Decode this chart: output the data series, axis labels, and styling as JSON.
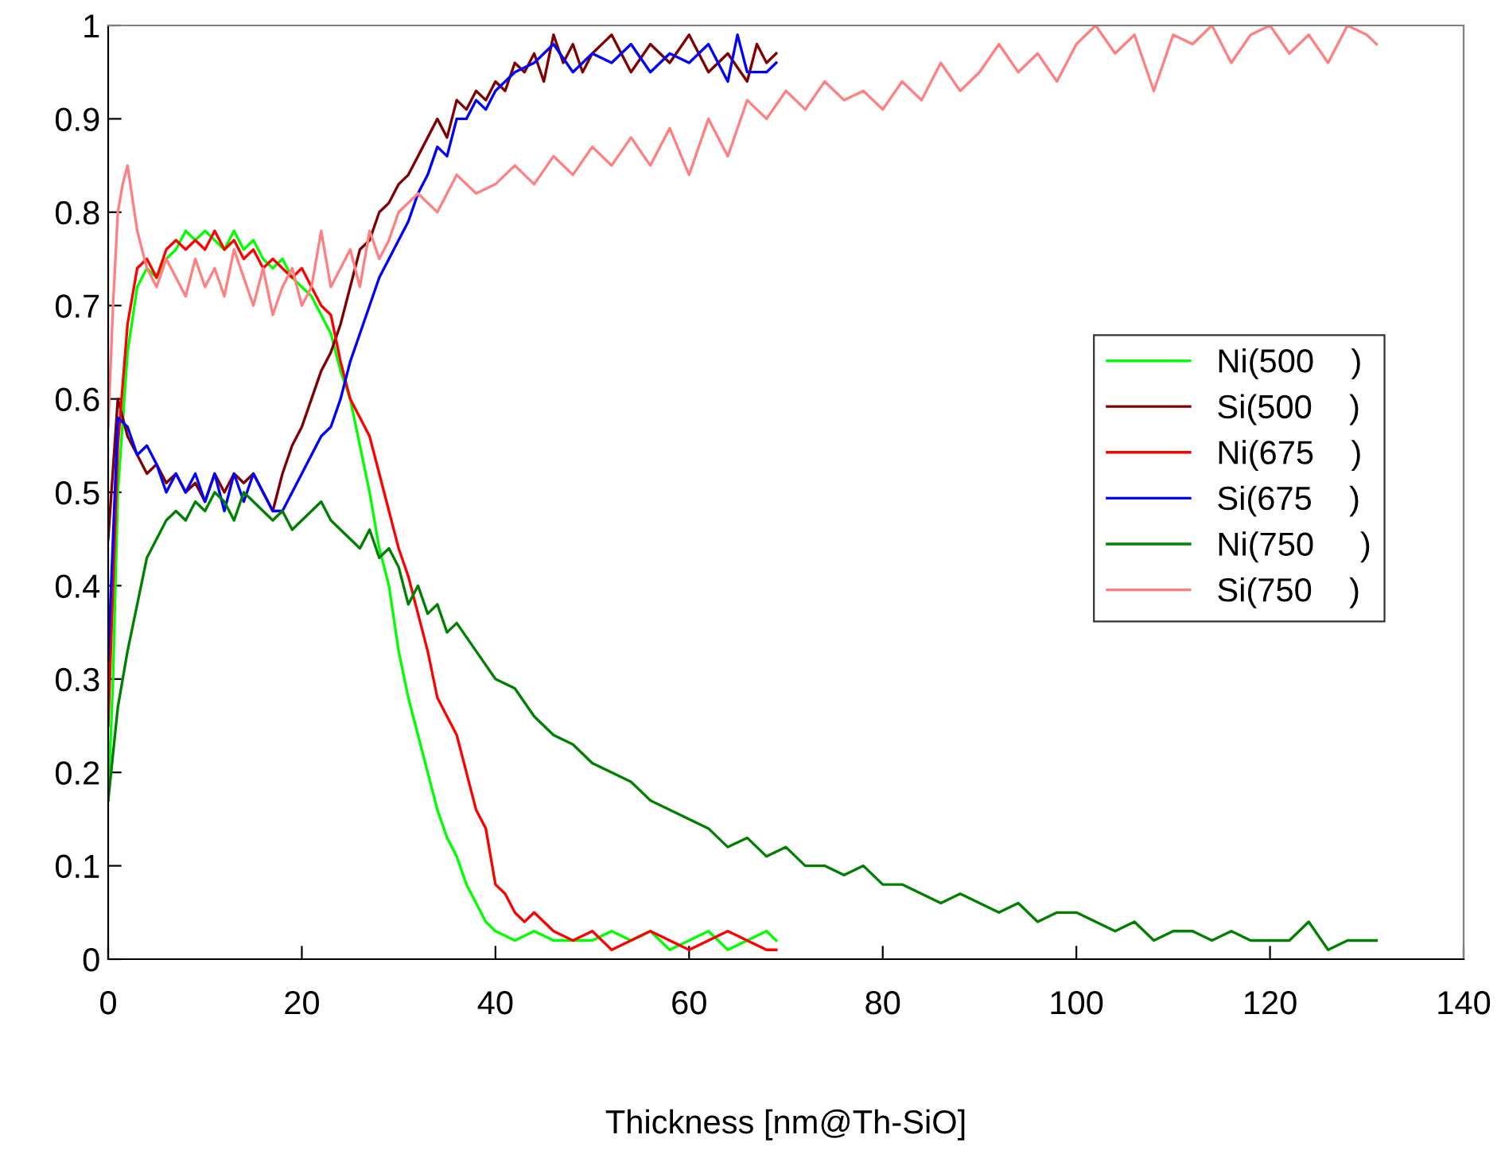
{
  "chart_data": {
    "type": "line",
    "xlabel": "Thickness [nm@Th-SiO]",
    "xlim": [
      0,
      140
    ],
    "xticks": [
      0,
      20,
      40,
      60,
      80,
      100,
      120,
      140
    ],
    "ylim": [
      0,
      1
    ],
    "yticks": [
      0,
      0.1,
      0.2,
      0.3,
      0.4,
      0.5,
      0.6,
      0.7,
      0.8,
      0.9,
      1
    ],
    "grid": false,
    "legend": "right",
    "marker": "none",
    "line_style": "solid",
    "series": [
      {
        "name": "Ni(500    )",
        "color": "#00ff00",
        "x": [
          0,
          0.5,
          1,
          2,
          3,
          4,
          5,
          6,
          7,
          8,
          9,
          10,
          11,
          12,
          13,
          14,
          15,
          16,
          17,
          18,
          19,
          20,
          21,
          22,
          23,
          24,
          25,
          26,
          27,
          28,
          29,
          30,
          31,
          32,
          33,
          34,
          35,
          36,
          37,
          38,
          39,
          40,
          42,
          44,
          46,
          48,
          50,
          52,
          54,
          56,
          58,
          60,
          62,
          64,
          66,
          68,
          69
        ],
        "values": [
          0.17,
          0.3,
          0.5,
          0.65,
          0.72,
          0.74,
          0.73,
          0.75,
          0.76,
          0.78,
          0.77,
          0.78,
          0.77,
          0.76,
          0.78,
          0.76,
          0.77,
          0.75,
          0.74,
          0.75,
          0.73,
          0.72,
          0.71,
          0.69,
          0.67,
          0.63,
          0.6,
          0.55,
          0.5,
          0.44,
          0.4,
          0.33,
          0.28,
          0.24,
          0.2,
          0.16,
          0.13,
          0.11,
          0.08,
          0.06,
          0.04,
          0.03,
          0.02,
          0.03,
          0.02,
          0.02,
          0.02,
          0.03,
          0.02,
          0.03,
          0.01,
          0.02,
          0.03,
          0.01,
          0.02,
          0.03,
          0.02
        ]
      },
      {
        "name": "Si(500    )",
        "color": "#800000",
        "x": [
          0,
          1,
          2,
          3,
          4,
          5,
          6,
          7,
          8,
          9,
          10,
          11,
          12,
          13,
          14,
          15,
          16,
          17,
          18,
          19,
          20,
          21,
          22,
          23,
          24,
          25,
          26,
          27,
          28,
          29,
          30,
          31,
          32,
          33,
          34,
          35,
          36,
          37,
          38,
          39,
          40,
          41,
          42,
          43,
          44,
          45,
          46,
          47,
          48,
          49,
          50,
          52,
          54,
          56,
          58,
          60,
          62,
          64,
          66,
          67,
          68,
          69
        ],
        "values": [
          0.45,
          0.6,
          0.56,
          0.54,
          0.52,
          0.53,
          0.51,
          0.52,
          0.5,
          0.51,
          0.49,
          0.52,
          0.5,
          0.52,
          0.51,
          0.52,
          0.5,
          0.48,
          0.52,
          0.55,
          0.57,
          0.6,
          0.63,
          0.65,
          0.68,
          0.72,
          0.76,
          0.77,
          0.8,
          0.81,
          0.83,
          0.84,
          0.86,
          0.88,
          0.9,
          0.88,
          0.92,
          0.91,
          0.93,
          0.92,
          0.94,
          0.93,
          0.96,
          0.95,
          0.97,
          0.94,
          0.99,
          0.96,
          0.98,
          0.95,
          0.97,
          0.99,
          0.95,
          0.98,
          0.96,
          0.99,
          0.95,
          0.97,
          0.94,
          0.98,
          0.96,
          0.97
        ]
      },
      {
        "name": "Ni(675    )",
        "color": "#ff0000",
        "x": [
          0,
          0.5,
          1,
          2,
          3,
          4,
          5,
          6,
          7,
          8,
          9,
          10,
          11,
          12,
          13,
          14,
          15,
          16,
          17,
          18,
          19,
          20,
          21,
          22,
          23,
          24,
          25,
          26,
          27,
          28,
          29,
          30,
          31,
          32,
          33,
          34,
          35,
          36,
          37,
          38,
          39,
          40,
          41,
          42,
          43,
          44,
          46,
          48,
          50,
          52,
          54,
          56,
          58,
          60,
          62,
          64,
          66,
          68,
          69
        ],
        "values": [
          0.25,
          0.4,
          0.55,
          0.68,
          0.74,
          0.75,
          0.73,
          0.76,
          0.77,
          0.76,
          0.77,
          0.76,
          0.78,
          0.76,
          0.77,
          0.75,
          0.76,
          0.74,
          0.75,
          0.74,
          0.73,
          0.74,
          0.72,
          0.7,
          0.69,
          0.64,
          0.6,
          0.58,
          0.56,
          0.52,
          0.48,
          0.44,
          0.41,
          0.37,
          0.33,
          0.28,
          0.26,
          0.24,
          0.2,
          0.16,
          0.14,
          0.08,
          0.07,
          0.05,
          0.04,
          0.05,
          0.03,
          0.02,
          0.03,
          0.01,
          0.02,
          0.03,
          0.02,
          0.01,
          0.02,
          0.03,
          0.02,
          0.01,
          0.01
        ]
      },
      {
        "name": "Si(675    )",
        "color": "#0000ff",
        "x": [
          0,
          0.5,
          1,
          2,
          3,
          4,
          5,
          6,
          7,
          8,
          9,
          10,
          11,
          12,
          13,
          14,
          15,
          16,
          17,
          18,
          19,
          20,
          21,
          22,
          23,
          24,
          25,
          26,
          27,
          28,
          29,
          30,
          31,
          32,
          33,
          34,
          35,
          36,
          37,
          38,
          39,
          40,
          42,
          44,
          46,
          48,
          50,
          52,
          54,
          56,
          58,
          60,
          62,
          64,
          65,
          66,
          68,
          69
        ],
        "values": [
          0.32,
          0.45,
          0.58,
          0.57,
          0.54,
          0.55,
          0.53,
          0.5,
          0.52,
          0.5,
          0.52,
          0.49,
          0.52,
          0.48,
          0.52,
          0.49,
          0.52,
          0.5,
          0.48,
          0.48,
          0.5,
          0.52,
          0.54,
          0.56,
          0.57,
          0.6,
          0.64,
          0.67,
          0.7,
          0.73,
          0.75,
          0.77,
          0.79,
          0.82,
          0.84,
          0.87,
          0.86,
          0.9,
          0.9,
          0.92,
          0.91,
          0.93,
          0.95,
          0.96,
          0.98,
          0.95,
          0.97,
          0.96,
          0.98,
          0.95,
          0.97,
          0.96,
          0.98,
          0.94,
          0.99,
          0.95,
          0.95,
          0.96
        ]
      },
      {
        "name": "Ni(750     )",
        "color": "#008000",
        "x": [
          0,
          0.5,
          1,
          2,
          3,
          4,
          5,
          6,
          7,
          8,
          9,
          10,
          11,
          12,
          13,
          14,
          15,
          16,
          17,
          18,
          19,
          20,
          21,
          22,
          23,
          24,
          25,
          26,
          27,
          28,
          29,
          30,
          31,
          32,
          33,
          34,
          35,
          36,
          38,
          40,
          42,
          44,
          46,
          48,
          50,
          52,
          54,
          56,
          58,
          60,
          62,
          64,
          66,
          68,
          70,
          72,
          74,
          76,
          78,
          80,
          82,
          84,
          86,
          88,
          90,
          92,
          94,
          96,
          98,
          100,
          102,
          104,
          106,
          108,
          110,
          112,
          114,
          116,
          118,
          120,
          122,
          124,
          126,
          128,
          130,
          131
        ],
        "values": [
          0.17,
          0.22,
          0.27,
          0.33,
          0.38,
          0.43,
          0.45,
          0.47,
          0.48,
          0.47,
          0.49,
          0.48,
          0.5,
          0.49,
          0.47,
          0.5,
          0.49,
          0.48,
          0.47,
          0.48,
          0.46,
          0.47,
          0.48,
          0.49,
          0.47,
          0.46,
          0.45,
          0.44,
          0.46,
          0.43,
          0.44,
          0.42,
          0.38,
          0.4,
          0.37,
          0.38,
          0.35,
          0.36,
          0.33,
          0.3,
          0.29,
          0.26,
          0.24,
          0.23,
          0.21,
          0.2,
          0.19,
          0.17,
          0.16,
          0.15,
          0.14,
          0.12,
          0.13,
          0.11,
          0.12,
          0.1,
          0.1,
          0.09,
          0.1,
          0.08,
          0.08,
          0.07,
          0.06,
          0.07,
          0.06,
          0.05,
          0.06,
          0.04,
          0.05,
          0.05,
          0.04,
          0.03,
          0.04,
          0.02,
          0.03,
          0.03,
          0.02,
          0.03,
          0.02,
          0.02,
          0.02,
          0.04,
          0.01,
          0.02,
          0.02,
          0.02
        ]
      },
      {
        "name": "Si(750    )",
        "color": "#ff8080",
        "x": [
          0,
          0.5,
          1,
          1.5,
          2,
          3,
          4,
          5,
          6,
          7,
          8,
          9,
          10,
          11,
          12,
          13,
          14,
          15,
          16,
          17,
          18,
          19,
          20,
          21,
          22,
          23,
          24,
          25,
          26,
          27,
          28,
          29,
          30,
          32,
          34,
          36,
          38,
          40,
          42,
          44,
          46,
          48,
          50,
          52,
          54,
          56,
          58,
          60,
          62,
          64,
          66,
          68,
          70,
          72,
          74,
          76,
          78,
          80,
          82,
          84,
          86,
          88,
          90,
          92,
          94,
          96,
          98,
          100,
          102,
          104,
          106,
          108,
          110,
          112,
          114,
          116,
          118,
          120,
          122,
          124,
          126,
          128,
          130,
          131
        ],
        "values": [
          0.57,
          0.7,
          0.8,
          0.83,
          0.85,
          0.78,
          0.74,
          0.72,
          0.75,
          0.73,
          0.71,
          0.75,
          0.72,
          0.74,
          0.71,
          0.76,
          0.73,
          0.7,
          0.74,
          0.69,
          0.72,
          0.74,
          0.7,
          0.72,
          0.78,
          0.72,
          0.74,
          0.76,
          0.72,
          0.78,
          0.75,
          0.77,
          0.8,
          0.82,
          0.8,
          0.84,
          0.82,
          0.83,
          0.85,
          0.83,
          0.86,
          0.84,
          0.87,
          0.85,
          0.88,
          0.85,
          0.89,
          0.84,
          0.9,
          0.86,
          0.92,
          0.9,
          0.93,
          0.91,
          0.94,
          0.92,
          0.93,
          0.91,
          0.94,
          0.92,
          0.96,
          0.93,
          0.95,
          0.98,
          0.95,
          0.97,
          0.94,
          0.98,
          1.0,
          0.97,
          0.99,
          0.93,
          0.99,
          0.98,
          1.0,
          0.96,
          0.99,
          1.0,
          0.97,
          0.99,
          0.96,
          1.0,
          0.99,
          0.98
        ]
      }
    ]
  }
}
